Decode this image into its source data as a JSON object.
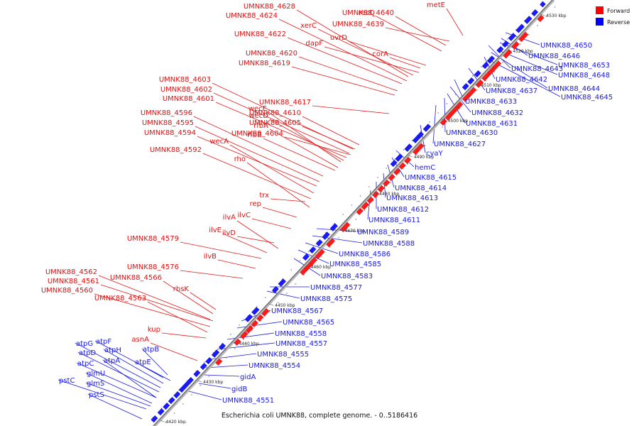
{
  "legend": {
    "forward_label": "Forward",
    "reverse_label": "Reverse",
    "forward_color": "#ff0000",
    "reverse_color": "#0000ff"
  },
  "caption": "Escherichia coli UMNK88, complete genome. - 0..5186416",
  "ticks": [
    "4420 kbp",
    "4430 kbp",
    "4440 kbp",
    "4450 kbp",
    "4460 kbp",
    "4470 kbp",
    "4480 kbp",
    "4490 kbp",
    "4500 kbp",
    "4510 kbp",
    "4520 kbp",
    "4530 kbp"
  ],
  "forward_genes": [
    "metE",
    "recQ",
    "UMNK88_4640",
    "UMNK88_4628",
    "UMNK88_4624",
    "xerC",
    "UMNK88_4639",
    "UMNK88_4622",
    "uvrD",
    "dapF",
    "corA",
    "UMNK88_4620",
    "UMNK88_4619",
    "UMNK88_4603",
    "UMNK88_4602",
    "UMNK88_4601",
    "UMNK88_4617",
    "wecE",
    "UMNK88_4596",
    "wecD",
    "UMNK88_4610",
    "UMNK88_4595",
    "rfbA",
    "UMNK88_4605",
    "UMNK88_4594",
    "rfbB",
    "UMNK88_4604",
    "wecA",
    "UMNK88_4592",
    "rho",
    "trx",
    "rep",
    "ilvA",
    "ilvC",
    "ilvE",
    "UMNK88_4579",
    "ilvD",
    "ilvB",
    "UMNK88_4576",
    "UMNK88_4562",
    "UMNK88_4566",
    "UMNK88_4561",
    "rbsK",
    "UMNK88_4560",
    "UMNK88_4563",
    "kup",
    "asnA"
  ],
  "reverse_genes": [
    "UMNK88_4650",
    "UMNK88_4646",
    "UMNK88_4653",
    "UMNK88_4643",
    "UMNK88_4648",
    "UMNK88_4642",
    "UMNK88_4637",
    "UMNK88_4644",
    "UMNK88_4645",
    "UMNK88_4633",
    "UMNK88_4632",
    "UMNK88_4631",
    "UMNK88_4630",
    "UMNK88_4627",
    "cyaY",
    "hemC",
    "UMNK88_4615",
    "UMNK88_4614",
    "UMNK88_4613",
    "UMNK88_4612",
    "UMNK88_4611",
    "UMNK88_4589",
    "UMNK88_4588",
    "UMNK88_4586",
    "UMNK88_4585",
    "UMNK88_4583",
    "UMNK88_4577",
    "UMNK88_4575",
    "UMNK88_4567",
    "UMNK88_4565",
    "UMNK88_4558",
    "UMNK88_4557",
    "UMNK88_4555",
    "UMNK88_4554",
    "gidA",
    "gidB",
    "UMNK88_4551",
    "atpF",
    "atpG",
    "atpH",
    "atpD",
    "atpB",
    "atpA",
    "atpC",
    "atpE",
    "glmU",
    "pstC",
    "glmS",
    "pstS"
  ]
}
